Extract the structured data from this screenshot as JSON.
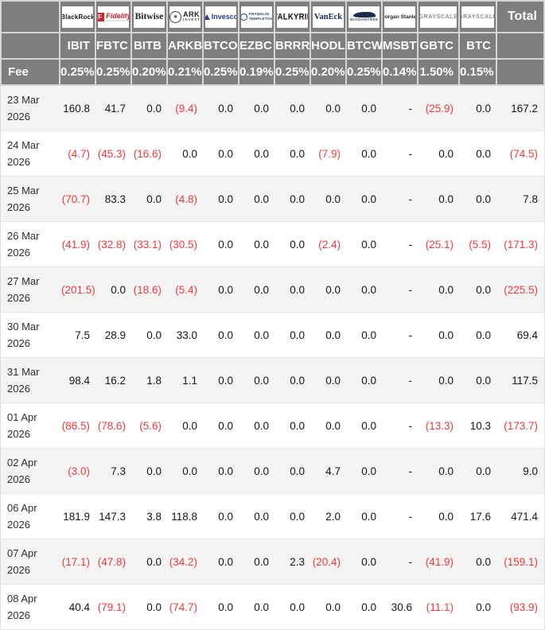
{
  "colors": {
    "header_bg": "#7e7e7e",
    "header_text": "#ffffff",
    "negative_value": "#f23a3a",
    "stripe_row": "#f4f4f4"
  },
  "table": {
    "fee_label": "Fee",
    "total_label": "Total",
    "funds": [
      {
        "logo": "blackrock",
        "logo_text": "BlackRock",
        "ticker": "IBIT",
        "fee": "0.25%"
      },
      {
        "logo": "fidelity",
        "logo_mark": "F",
        "logo_text": "Fidelity",
        "ticker": "FBTC",
        "fee": "0.25%"
      },
      {
        "logo": "bitwise",
        "logo_text": "Bitwise",
        "ticker": "BITB",
        "fee": "0.20%"
      },
      {
        "logo": "ark",
        "logo_text": "ARK",
        "logo_sub": "INVEST",
        "ticker": "ARKB",
        "fee": "0.21%"
      },
      {
        "logo": "invesco",
        "logo_text": "Invesco",
        "ticker": "BTCO",
        "fee": "0.25%"
      },
      {
        "logo": "franklin",
        "logo_text": "FRANKLIN",
        "logo_sub": "TEMPLETON",
        "ticker": "EZBC",
        "fee": "0.19%"
      },
      {
        "logo": "valkyrie",
        "logo_text": "VALKYRIE",
        "ticker": "BRRR",
        "fee": "0.25%"
      },
      {
        "logo": "vaneck",
        "logo_text": "VanEck",
        "ticker": "HODL",
        "fee": "0.20%"
      },
      {
        "logo": "wisdomtree",
        "logo_text": "WISDOMTREE",
        "ticker": "BTCW",
        "fee": "0.25%"
      },
      {
        "logo": "morganstanley",
        "logo_text": "Morgan Stanley",
        "ticker": "MSBT",
        "fee": "0.14%"
      },
      {
        "logo": "grayscale",
        "logo_text": "GRAYSCALE",
        "ticker": "GBTC",
        "fee": "1.50%"
      },
      {
        "logo": "grayscale",
        "logo_text": "GRAYSCALE",
        "ticker": "BTC",
        "fee": "0.15%"
      }
    ],
    "rows": [
      {
        "date_line1": "23 Mar",
        "date_line2": "2026",
        "values": [
          "160.8",
          "41.7",
          "0.0",
          "(9.4)",
          "0.0",
          "0.0",
          "0.0",
          "0.0",
          "0.0",
          "-",
          "(25.9)",
          "0.0"
        ],
        "total": "167.2"
      },
      {
        "date_line1": "24 Mar",
        "date_line2": "2026",
        "values": [
          "(4.7)",
          "(45.3)",
          "(16.6)",
          "0.0",
          "0.0",
          "0.0",
          "0.0",
          "(7.9)",
          "0.0",
          "-",
          "0.0",
          "0.0"
        ],
        "total": "(74.5)"
      },
      {
        "date_line1": "25 Mar",
        "date_line2": "2026",
        "values": [
          "(70.7)",
          "83.3",
          "0.0",
          "(4.8)",
          "0.0",
          "0.0",
          "0.0",
          "0.0",
          "0.0",
          "-",
          "0.0",
          "0.0"
        ],
        "total": "7.8"
      },
      {
        "date_line1": "26 Mar",
        "date_line2": "2026",
        "values": [
          "(41.9)",
          "(32.8)",
          "(33.1)",
          "(30.5)",
          "0.0",
          "0.0",
          "0.0",
          "(2.4)",
          "0.0",
          "-",
          "(25.1)",
          "(5.5)"
        ],
        "total": "(171.3)"
      },
      {
        "date_line1": "27 Mar",
        "date_line2": "2026",
        "values": [
          "(201.5)",
          "0.0",
          "(18.6)",
          "(5.4)",
          "0.0",
          "0.0",
          "0.0",
          "0.0",
          "0.0",
          "-",
          "0.0",
          "0.0"
        ],
        "total": "(225.5)"
      },
      {
        "date_line1": "30 Mar",
        "date_line2": "2026",
        "values": [
          "7.5",
          "28.9",
          "0.0",
          "33.0",
          "0.0",
          "0.0",
          "0.0",
          "0.0",
          "0.0",
          "-",
          "0.0",
          "0.0"
        ],
        "total": "69.4"
      },
      {
        "date_line1": "31 Mar",
        "date_line2": "2026",
        "values": [
          "98.4",
          "16.2",
          "1.8",
          "1.1",
          "0.0",
          "0.0",
          "0.0",
          "0.0",
          "0.0",
          "-",
          "0.0",
          "0.0"
        ],
        "total": "117.5"
      },
      {
        "date_line1": "01 Apr",
        "date_line2": "2026",
        "values": [
          "(86.5)",
          "(78.6)",
          "(5.6)",
          "0.0",
          "0.0",
          "0.0",
          "0.0",
          "0.0",
          "0.0",
          "-",
          "(13.3)",
          "10.3"
        ],
        "total": "(173.7)"
      },
      {
        "date_line1": "02 Apr",
        "date_line2": "2026",
        "values": [
          "(3.0)",
          "7.3",
          "0.0",
          "0.0",
          "0.0",
          "0.0",
          "0.0",
          "4.7",
          "0.0",
          "-",
          "0.0",
          "0.0"
        ],
        "total": "9.0"
      },
      {
        "date_line1": "06 Apr",
        "date_line2": "2026",
        "values": [
          "181.9",
          "147.3",
          "3.8",
          "118.8",
          "0.0",
          "0.0",
          "0.0",
          "2.0",
          "0.0",
          "-",
          "0.0",
          "17.6"
        ],
        "total": "471.4"
      },
      {
        "date_line1": "07 Apr",
        "date_line2": "2026",
        "values": [
          "(17.1)",
          "(47.8)",
          "0.0",
          "(34.2)",
          "0.0",
          "0.0",
          "2.3",
          "(20.4)",
          "0.0",
          "-",
          "(41.9)",
          "0.0"
        ],
        "total": "(159.1)"
      },
      {
        "date_line1": "08 Apr",
        "date_line2": "2026",
        "values": [
          "40.4",
          "(79.1)",
          "0.0",
          "(74.7)",
          "0.0",
          "0.0",
          "0.0",
          "0.0",
          "0.0",
          "30.6",
          "(11.1)",
          "0.0"
        ],
        "total": "(93.9)"
      }
    ]
  }
}
